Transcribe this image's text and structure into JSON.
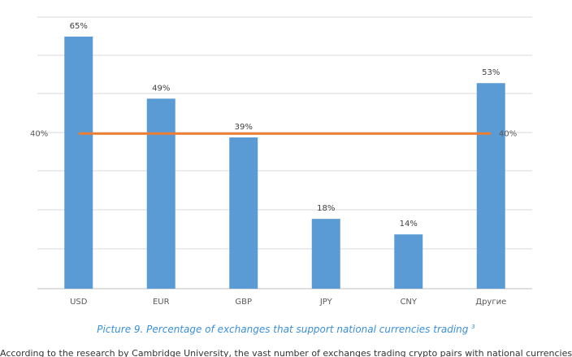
{
  "chart_data": {
    "type": "bar",
    "categories": [
      "USD",
      "EUR",
      "GBP",
      "JPY",
      "CNY",
      "Другие"
    ],
    "series": [
      {
        "values": [
          65,
          49,
          39,
          18,
          14,
          53
        ],
        "color": "#5b9bd5"
      }
    ],
    "data_labels": [
      "65%",
      "49%",
      "39%",
      "18%",
      "14%",
      "53%"
    ],
    "reference_line": {
      "value": 40,
      "label_left": "40%",
      "label_right": "40%",
      "color": "#ed7d31"
    },
    "ylim": [
      0,
      65
    ],
    "grid": true,
    "grid_color": "#d9d9d9",
    "legend": "none",
    "title": "",
    "xlabel": "",
    "ylabel": ""
  },
  "caption": {
    "text": "Picture 9. Percentage of exchanges that support national currencies trading",
    "footnote": "3"
  },
  "body_text": "According to the research by Cambridge University, the vast number of exchanges trading crypto pairs with national currencies"
}
